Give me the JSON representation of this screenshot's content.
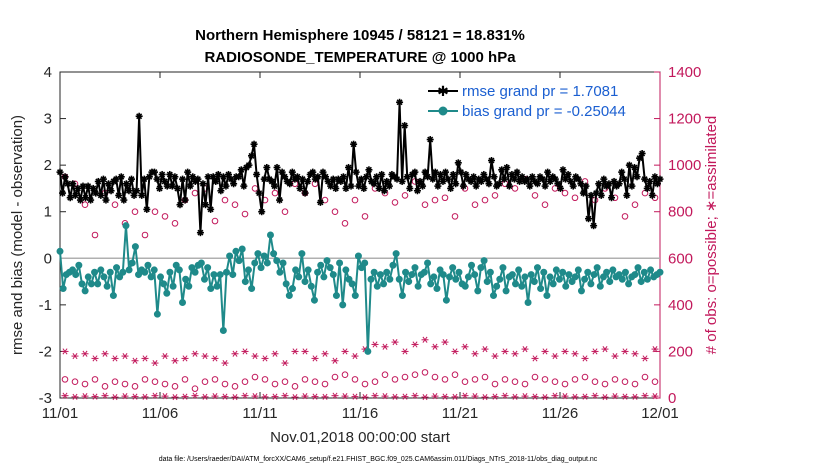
{
  "chart_data": {
    "type": "line",
    "title_line1": "Northern Hemisphere 10945 / 58121 = 18.831%",
    "title_line2": "RADIOSONDE_TEMPERATURE @ 1000 hPa",
    "xlabel": "Nov.01,2018 00:00:00 start",
    "ylabel_left": "rmse and bias (model - observation)",
    "ylabel_right": "# of obs: o=possible; ∗=assimilated",
    "footnote": "data file: /Users/raeder/DAI/ATM_forcXX/CAM6_setup/f.e21.FHIST_BGC.f09_025.CAM6assim.011/Diags_NTrS_2018-11/obs_diag_output.nc",
    "xlim": [
      0,
      60
    ],
    "ylim_left": [
      -3,
      4
    ],
    "ylim_right": [
      0,
      1400
    ],
    "x_ticks": [
      0,
      10,
      20,
      30,
      40,
      50,
      60
    ],
    "x_tick_labels": [
      "11/01",
      "11/06",
      "11/11",
      "11/16",
      "11/21",
      "11/26",
      "12/01"
    ],
    "y_ticks_left": [
      -3,
      -2,
      -1,
      0,
      1,
      2,
      3,
      4
    ],
    "y_ticks_left_labels": [
      "-3",
      "-2",
      "-1",
      "0",
      "1",
      "2",
      "3",
      "4"
    ],
    "y_ticks_right": [
      0,
      200,
      400,
      600,
      800,
      1000,
      1200,
      1400
    ],
    "y_ticks_right_labels": [
      "0",
      "200",
      "400",
      "600",
      "800",
      "1000",
      "1200",
      "1400"
    ],
    "zero_line": 0,
    "colors": {
      "rmse": "#000000",
      "bias": "#1f8a8a",
      "counts": "#c2185b",
      "legend_text": "#1b5fd1",
      "zero": "#b0b0b0"
    },
    "series": [
      {
        "name": "rmse grand pr = 1.7081",
        "marker": "star",
        "values": [
          1.85,
          1.4,
          1.75,
          1.6,
          1.3,
          1.6,
          1.35,
          1.5,
          1.25,
          1.55,
          1.3,
          1.55,
          1.25,
          1.5,
          1.4,
          1.65,
          1.35,
          1.7,
          1.25,
          1.6,
          1.45,
          1.65,
          1.7,
          1.35,
          1.75,
          1.25,
          1.6,
          1.45,
          1.7,
          1.35,
          1.45,
          3.05,
          1.35,
          1.7,
          1.05,
          1.75,
          1.85,
          1.85,
          1.7,
          1.5,
          1.8,
          1.65,
          1.55,
          1.8,
          1.55,
          1.75,
          1.5,
          1.15,
          1.7,
          1.25,
          1.85,
          1.55,
          1.75,
          1.65,
          1.7,
          0.55,
          1.6,
          1.15,
          1.75,
          1.05,
          1.75,
          1.65,
          1.8,
          1.45,
          1.75,
          1.55,
          1.8,
          1.7,
          1.6,
          1.75,
          1.75,
          1.9,
          1.55,
          1.95,
          2.0,
          2.2,
          2.45,
          1.8,
          1.4,
          1.0,
          1.7,
          1.95,
          1.7,
          1.65,
          1.55,
          1.95,
          1.25,
          1.85,
          1.75,
          1.65,
          1.6,
          1.85,
          1.7,
          1.75,
          1.5,
          1.7,
          1.4,
          1.65,
          1.8,
          1.85,
          1.7,
          1.75,
          1.2,
          1.85,
          1.75,
          1.65,
          1.55,
          1.7,
          1.5,
          1.7,
          1.65,
          1.75,
          1.5,
          1.95,
          1.55,
          2.45,
          1.85,
          1.55,
          1.7,
          1.5,
          1.75,
          1.9,
          1.65,
          1.6,
          1.75,
          1.5,
          1.8,
          1.45,
          1.65,
          1.55,
          1.8,
          1.75,
          1.7,
          3.35,
          1.65,
          2.85,
          1.75,
          1.5,
          1.8,
          1.85,
          1.45,
          1.65,
          1.55,
          1.85,
          1.75,
          2.55,
          1.7,
          1.85,
          1.55,
          1.8,
          1.65,
          1.85,
          1.7,
          1.5,
          1.8,
          1.6,
          2.05,
          1.85,
          1.55,
          1.8,
          1.7,
          1.65,
          1.75,
          1.55,
          1.7,
          1.65,
          1.8,
          1.7,
          1.6,
          2.1,
          1.75,
          1.55,
          1.6,
          1.9,
          1.7,
          1.95,
          1.55,
          1.8,
          1.7,
          1.85,
          1.65,
          1.75,
          1.65,
          1.7,
          1.55,
          1.75,
          1.65,
          1.6,
          1.75,
          1.7,
          1.55,
          1.85,
          1.65,
          1.75,
          1.7,
          1.6,
          1.5,
          1.9,
          1.7,
          1.8,
          1.65,
          1.55,
          1.75,
          1.7,
          1.6,
          1.4,
          1.55,
          0.85,
          1.35,
          0.7,
          1.4,
          1.6,
          1.35,
          1.7,
          1.55,
          1.6,
          1.3,
          1.65,
          1.55,
          1.6,
          1.85,
          1.7,
          1.35,
          2.0,
          1.55,
          1.95,
          1.75,
          2.15,
          2.25,
          1.7,
          1.5,
          1.65,
          1.35,
          1.75,
          1.6,
          1.7
        ]
      },
      {
        "name": "bias grand pr = -0.25044",
        "marker": "circle",
        "values": [
          0.15,
          -0.65,
          -0.35,
          -0.3,
          -0.25,
          -0.35,
          -0.15,
          -0.55,
          -0.7,
          -0.4,
          -0.55,
          -0.3,
          -0.55,
          -0.25,
          -0.4,
          -0.6,
          -0.3,
          -0.8,
          -0.2,
          -0.4,
          -0.3,
          0.7,
          -0.25,
          -0.1,
          0.25,
          -0.35,
          -0.25,
          -0.3,
          -0.15,
          -0.4,
          -0.25,
          -1.2,
          -0.4,
          -0.55,
          -0.75,
          -0.3,
          -0.6,
          -0.15,
          -0.25,
          -0.95,
          -0.45,
          -0.6,
          -0.2,
          -0.3,
          -0.15,
          -0.1,
          -0.45,
          -0.2,
          -0.65,
          -0.35,
          -0.6,
          -0.35,
          -1.55,
          -0.3,
          0.05,
          -0.35,
          0.15,
          -0.05,
          0.2,
          -0.5,
          -0.25,
          -0.65,
          -0.1,
          0.1,
          -0.2,
          0.05,
          -0.1,
          0.5,
          0.1,
          -0.05,
          -0.3,
          -0.1,
          -0.55,
          -0.8,
          -0.65,
          -0.25,
          -0.4,
          0.1,
          -0.5,
          -0.25,
          -0.6,
          -0.9,
          -0.3,
          -0.15,
          -0.4,
          -0.05,
          -0.2,
          -0.35,
          -0.8,
          -0.1,
          -1.0,
          -0.25,
          -0.45,
          -0.55,
          -0.8,
          0.05,
          -0.2,
          -0.1,
          -2.0,
          -0.45,
          -0.3,
          -0.6,
          -0.35,
          -0.55,
          -0.3,
          -0.45,
          -0.15,
          0.1,
          -0.45,
          -0.8,
          -0.3,
          -0.5,
          -0.35,
          -0.2,
          -0.6,
          -0.35,
          -0.3,
          -0.1,
          -0.55,
          -0.4,
          -0.65,
          -0.25,
          -0.35,
          -0.9,
          -0.4,
          -0.2,
          -0.45,
          -0.3,
          -0.55,
          -0.6,
          -0.4,
          -0.15,
          -0.35,
          -0.7,
          -0.2,
          -0.05,
          -0.5,
          -0.3,
          -0.8,
          -0.6,
          -0.45,
          -0.2,
          -0.7,
          -0.4,
          -0.35,
          -0.55,
          -0.25,
          -0.6,
          -0.4,
          -0.95,
          -0.35,
          -0.5,
          -0.2,
          -0.65,
          -0.3,
          -0.8,
          -0.4,
          -0.55,
          -0.25,
          -0.45,
          -0.3,
          -0.6,
          -0.35,
          -0.5,
          -0.4,
          -0.25,
          -0.7,
          -0.45,
          -0.3,
          -0.55,
          -0.35,
          -0.2,
          -0.6,
          -0.4,
          -0.3,
          -0.5,
          -0.25,
          -0.4,
          -0.35,
          -0.45,
          -0.3,
          -0.55,
          -0.4,
          -0.35,
          -0.2,
          -0.5,
          -0.3,
          -0.45,
          -0.25,
          -0.4,
          -0.35,
          -0.3
        ]
      }
    ],
    "counts_possible": [
      950,
      920,
      830,
      700,
      880,
      830,
      750,
      800,
      700,
      800,
      780,
      750,
      850,
      880,
      900,
      760,
      850,
      830,
      790,
      900,
      850,
      880,
      800,
      920,
      880,
      920,
      850,
      800,
      750,
      850,
      780,
      900,
      880,
      840,
      870,
      930,
      830,
      850,
      860,
      780,
      900,
      830,
      850,
      870,
      920,
      900,
      940,
      870,
      830,
      900,
      880,
      860,
      930,
      850,
      900,
      860,
      780,
      830,
      880,
      860
    ],
    "counts_assimilated": [
      200,
      180,
      190,
      170,
      190,
      170,
      180,
      160,
      170,
      150,
      180,
      160,
      170,
      190,
      180,
      170,
      150,
      190,
      200,
      180,
      170,
      190,
      150,
      200,
      200,
      170,
      190,
      160,
      200,
      180,
      210,
      230,
      220,
      240,
      200,
      230,
      250,
      220,
      240,
      200,
      220,
      190,
      210,
      180,
      200,
      190,
      210,
      170,
      200,
      180,
      200,
      190,
      170,
      200,
      210,
      180,
      200,
      190,
      170,
      210
    ],
    "counts_possible_low": [
      80,
      70,
      60,
      80,
      50,
      70,
      60,
      50,
      80,
      70,
      60,
      50,
      80,
      40,
      70,
      80,
      60,
      50,
      70,
      90,
      80,
      60,
      70,
      50,
      80,
      70,
      60,
      90,
      100,
      80,
      60,
      70,
      100,
      80,
      90,
      100,
      110,
      90,
      80,
      100,
      70,
      80,
      90,
      60,
      80,
      70,
      60,
      90,
      80,
      70,
      60,
      80,
      90,
      70,
      60,
      80,
      70,
      60,
      90,
      70
    ],
    "counts_assimilated_low": [
      10,
      5,
      8,
      6,
      10,
      4,
      8,
      6,
      5,
      10,
      8,
      4,
      6,
      10,
      5,
      8,
      6,
      4,
      10,
      8,
      5,
      6,
      10,
      4,
      8,
      6,
      5,
      10,
      8,
      6,
      4,
      10,
      8,
      5,
      6,
      10,
      4,
      8,
      6,
      5,
      10,
      8,
      4,
      6,
      10,
      5,
      8,
      6,
      4,
      10,
      8,
      5,
      6,
      10,
      4,
      8,
      6,
      5,
      10,
      8
    ]
  }
}
